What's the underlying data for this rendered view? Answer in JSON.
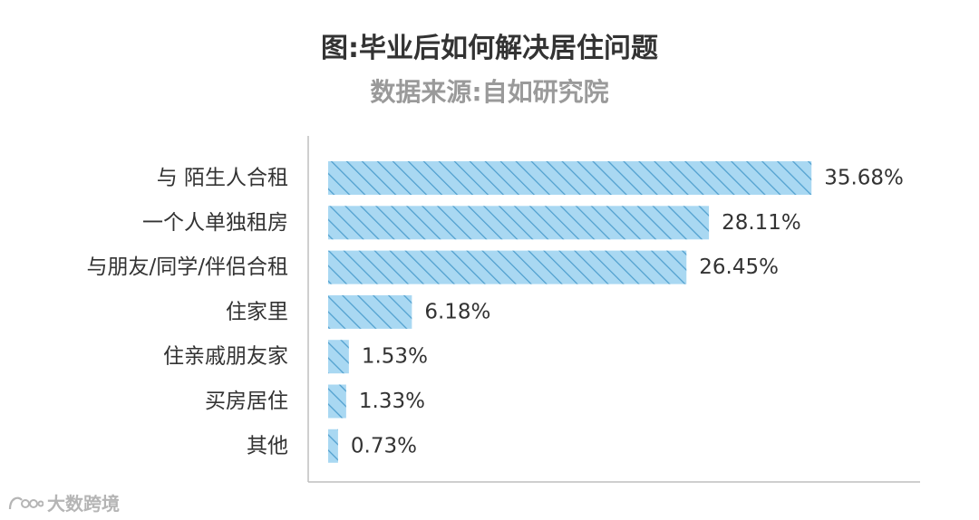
{
  "chart_data": {
    "type": "bar",
    "orientation": "horizontal",
    "title": "图:毕业后如何解决居住问题",
    "subtitle": "数据来源:自如研究院",
    "categories": [
      "与 陌生人合租",
      "一个人单独租房",
      "与朋友/同学/伴侣合租",
      "住家里",
      "住亲戚朋友家",
      "买房居住",
      "其他"
    ],
    "values": [
      35.68,
      28.11,
      26.45,
      6.18,
      1.53,
      1.33,
      0.73
    ],
    "value_labels": [
      "35.68%",
      "28.11%",
      "26.45%",
      "6.18%",
      "1.53%",
      "1.33%",
      "0.73%"
    ],
    "unit": "%",
    "xlim": [
      0,
      36
    ],
    "grid": false,
    "bar_color": "#a9d8f2",
    "hatch_color": "#4f9fce",
    "axis_color": "#bfbfbf"
  },
  "watermark": {
    "text": "大数跨境",
    "icon": "logo-icon"
  }
}
